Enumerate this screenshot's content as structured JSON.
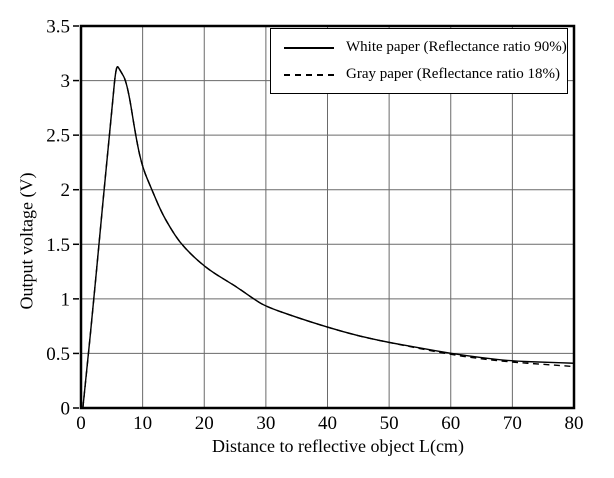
{
  "chart_data": {
    "type": "line",
    "title": "",
    "xlabel": "Distance to reflective object L(cm)",
    "ylabel": "Output voltage (V)",
    "xlim": [
      0,
      80
    ],
    "ylim": [
      0,
      3.5
    ],
    "x_ticks": [
      0,
      10,
      20,
      30,
      40,
      50,
      60,
      70,
      80
    ],
    "y_ticks": [
      0,
      0.5,
      1,
      1.5,
      2,
      2.5,
      3,
      3.5
    ],
    "grid": true,
    "legend_position": "top-right",
    "series": [
      {
        "name": "White paper (Reflectance ratio 90%)",
        "line_style": "solid",
        "color": "#000000",
        "x": [
          0.3,
          1,
          2,
          3,
          4,
          5,
          5.7,
          6.3,
          7.5,
          9,
          10,
          11.5,
          13,
          14.5,
          16,
          18,
          20,
          22,
          25,
          28,
          30,
          35,
          40,
          45,
          50,
          55,
          60,
          65,
          70,
          75,
          80
        ],
        "y": [
          0,
          0.38,
          0.95,
          1.55,
          2.15,
          2.72,
          3.15,
          3.1,
          2.98,
          2.45,
          2.2,
          2.0,
          1.8,
          1.65,
          1.52,
          1.4,
          1.3,
          1.22,
          1.12,
          1.0,
          0.93,
          0.83,
          0.74,
          0.66,
          0.6,
          0.55,
          0.5,
          0.46,
          0.43,
          0.42,
          0.41
        ]
      },
      {
        "name": "Gray paper (Reflectance ratio 18%)",
        "line_style": "dashed",
        "color": "#000000",
        "x": [
          0.3,
          1,
          2,
          3,
          4,
          5,
          5.7,
          6.3,
          7.5,
          9,
          10,
          11.5,
          13,
          14.5,
          16,
          18,
          20,
          22,
          25,
          28,
          30,
          35,
          40,
          45,
          50,
          55,
          60,
          65,
          70,
          75,
          80
        ],
        "y": [
          0,
          0.38,
          0.95,
          1.55,
          2.15,
          2.72,
          3.15,
          3.1,
          2.98,
          2.45,
          2.2,
          2.0,
          1.8,
          1.65,
          1.52,
          1.4,
          1.3,
          1.22,
          1.12,
          1.0,
          0.93,
          0.83,
          0.74,
          0.66,
          0.6,
          0.545,
          0.49,
          0.45,
          0.42,
          0.4,
          0.38
        ]
      }
    ]
  },
  "colors": {
    "curve": "#000000",
    "grid": "#6a6a6a",
    "frame": "#000000",
    "background": "#ffffff"
  }
}
